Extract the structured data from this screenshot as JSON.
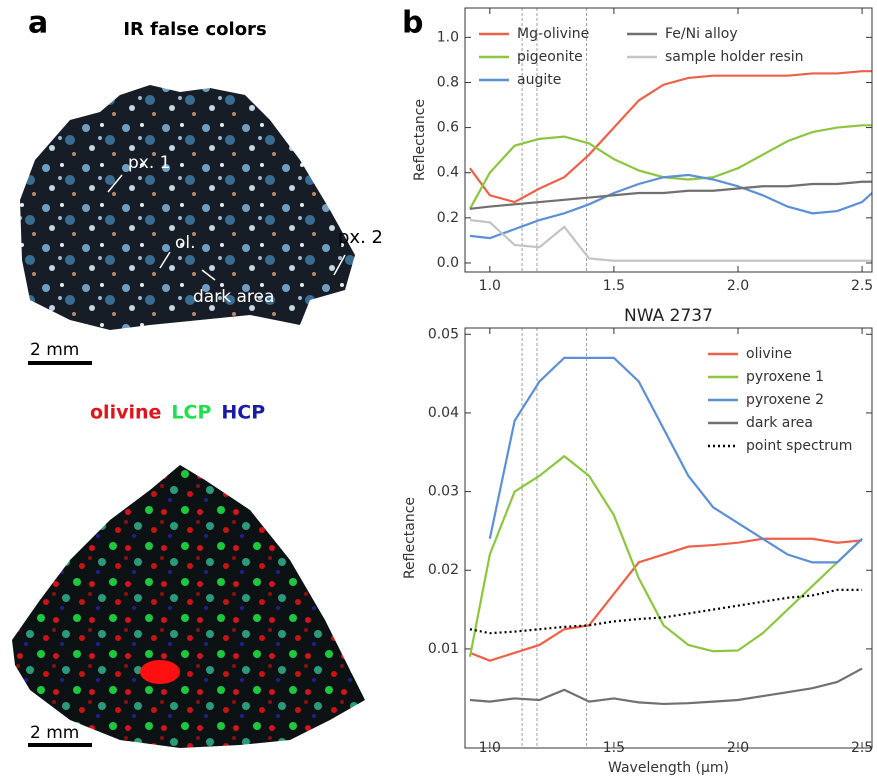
{
  "panel_a": {
    "label": "a",
    "image1_title": "IR false colors",
    "annotations": [
      "px. 1",
      "ol.",
      "dark area",
      "px. 2"
    ],
    "scale_bar_1": "2 mm",
    "image2_legend": [
      {
        "text": "olivine",
        "color": "#e0141c"
      },
      {
        "text": "LCP",
        "color": "#1fe04a"
      },
      {
        "text": "HCP",
        "color": "#1a1aa8"
      }
    ],
    "scale_bar_2": "2 mm"
  },
  "panel_b": {
    "label": "b"
  },
  "chart_data": [
    {
      "type": "line",
      "ylabel": "Reflectance",
      "x": [
        0.92,
        1.0,
        1.1,
        1.2,
        1.3,
        1.4,
        1.5,
        1.6,
        1.7,
        1.8,
        1.9,
        2.0,
        2.1,
        2.2,
        2.3,
        2.4,
        2.5,
        2.54
      ],
      "series": [
        {
          "name": "Mg-olivine",
          "color": "#ee6149",
          "values": [
            0.42,
            0.3,
            0.27,
            0.33,
            0.38,
            0.48,
            0.6,
            0.72,
            0.79,
            0.82,
            0.83,
            0.83,
            0.83,
            0.83,
            0.84,
            0.84,
            0.85,
            0.85
          ]
        },
        {
          "name": "pigeonite",
          "color": "#8cc63f",
          "values": [
            0.24,
            0.4,
            0.52,
            0.55,
            0.56,
            0.53,
            0.46,
            0.41,
            0.38,
            0.37,
            0.38,
            0.42,
            0.48,
            0.54,
            0.58,
            0.6,
            0.61,
            0.61
          ]
        },
        {
          "name": "augite",
          "color": "#5b8fd6",
          "values": [
            0.12,
            0.11,
            0.15,
            0.19,
            0.22,
            0.26,
            0.31,
            0.35,
            0.38,
            0.39,
            0.37,
            0.34,
            0.3,
            0.25,
            0.22,
            0.23,
            0.27,
            0.31
          ]
        },
        {
          "name": "Fe/Ni alloy",
          "color": "#707070",
          "values": [
            0.24,
            0.25,
            0.26,
            0.27,
            0.28,
            0.29,
            0.3,
            0.31,
            0.31,
            0.32,
            0.32,
            0.33,
            0.34,
            0.34,
            0.35,
            0.35,
            0.36,
            0.36
          ]
        },
        {
          "name": "sample holder resin",
          "color": "#c4c4c4",
          "values": [
            0.19,
            0.18,
            0.08,
            0.07,
            0.16,
            0.02,
            0.01,
            0.01,
            0.01,
            0.01,
            0.01,
            0.01,
            0.01,
            0.01,
            0.01,
            0.01,
            0.01,
            0.01
          ]
        }
      ],
      "xlim": [
        0.9,
        2.54
      ],
      "ylim": [
        -0.04,
        1.13
      ],
      "xticks": [
        {
          "value": 1.0,
          "label": "1.0"
        },
        1.5,
        {
          "value": 2.0,
          "label": "2.0"
        },
        2.5
      ],
      "yticks": [
        {
          "value": 0,
          "label": "0.0"
        },
        0.2,
        0.4,
        0.6,
        0.8,
        {
          "value": 1.0,
          "label": "1.0"
        }
      ],
      "vlines": [
        1.13,
        1.19,
        1.39
      ],
      "legend": {
        "loc": "upper left",
        "ncol": 2
      }
    },
    {
      "type": "line",
      "title": "NWA 2737",
      "xlabel": "Wavelength (μm)",
      "ylabel": "Reflectance",
      "x": [
        0.92,
        1.0,
        1.1,
        1.2,
        1.3,
        1.4,
        1.5,
        1.6,
        1.7,
        1.8,
        1.9,
        2.0,
        2.1,
        2.2,
        2.3,
        2.4,
        2.5
      ],
      "series": [
        {
          "name": "olivine",
          "color": "#ee6149",
          "values": [
            0.0095,
            0.0085,
            0.0095,
            0.0105,
            0.0125,
            0.013,
            0.017,
            0.021,
            0.022,
            0.023,
            0.0232,
            0.0235,
            0.024,
            0.024,
            0.024,
            0.0235,
            0.0238
          ]
        },
        {
          "name": "pyroxene 1",
          "color": "#8cc63f",
          "values": [
            0.009,
            0.022,
            0.03,
            0.032,
            0.0345,
            0.032,
            0.027,
            0.019,
            0.013,
            0.0105,
            0.0097,
            0.0098,
            0.012,
            0.015,
            0.018,
            0.021,
            0.024
          ]
        },
        {
          "name": "pyroxene 2",
          "color": "#5b8fd6",
          "values": [
            null,
            0.024,
            0.039,
            0.044,
            0.047,
            0.047,
            0.047,
            0.044,
            0.038,
            0.032,
            0.028,
            0.026,
            0.024,
            0.022,
            0.021,
            0.021,
            0.024
          ]
        },
        {
          "name": "dark area",
          "color": "#707070",
          "values": [
            0.0035,
            0.0033,
            0.0037,
            0.0035,
            0.0048,
            0.0033,
            0.0037,
            0.0032,
            0.003,
            0.0031,
            0.0033,
            0.0035,
            0.004,
            0.0045,
            0.005,
            0.0058,
            0.0075
          ]
        },
        {
          "name": "point spectrum",
          "color": "#000000",
          "style": "dotted",
          "values": [
            0.0125,
            0.012,
            0.0122,
            0.0125,
            0.0128,
            0.013,
            0.0135,
            0.0138,
            0.014,
            0.0145,
            0.015,
            0.0155,
            0.016,
            0.0165,
            0.0168,
            0.0175,
            0.0175
          ]
        }
      ],
      "xlim": [
        0.9,
        2.54
      ],
      "ylim": [
        -0.0026,
        0.0508
      ],
      "xticks": [
        {
          "value": 1.0,
          "label": "1.0"
        },
        1.5,
        {
          "value": 2.0,
          "label": "2.0"
        },
        2.5
      ],
      "yticks": [
        0.01,
        0.02,
        0.03,
        0.04,
        0.05
      ],
      "vlines": [
        1.13,
        1.19,
        1.39
      ],
      "legend": {
        "loc": "upper right",
        "ncol": 1
      }
    }
  ]
}
